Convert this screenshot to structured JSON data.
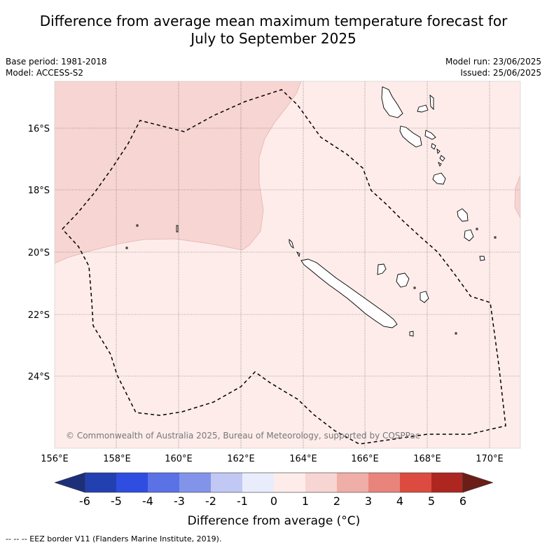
{
  "title_line1": "Difference from average mean maximum temperature forecast for",
  "title_line2": "July to September 2025",
  "base_period": "Base period: 1981-2018",
  "model": "Model: ACCESS-S2",
  "model_run": "Model run: 23/06/2025",
  "issued": "Issued: 25/06/2025",
  "copyright": "© Commonwealth of Australia 2025, Bureau of Meteorology, supported by COSPPac",
  "colorbar_label": "Difference from average (°C)",
  "footer": "--  --  -- EEZ border V11 (Flanders Marine Institute, 2019).",
  "lat_labels": [
    "16°S",
    "18°S",
    "20°S",
    "22°S",
    "24°S"
  ],
  "lon_labels": [
    "156°E",
    "158°E",
    "160°E",
    "162°E",
    "164°E",
    "166°E",
    "168°E",
    "170°E"
  ],
  "colorbar_ticks": [
    "-6",
    "-5",
    "-4",
    "-3",
    "-2",
    "-1",
    "0",
    "1",
    "2",
    "3",
    "4",
    "5",
    "6"
  ],
  "colors": {
    "anomaly_0_1": "#fdecea",
    "anomaly_1_2": "#f7d5d2",
    "scale": [
      "#1e2f7a",
      "#2340b0",
      "#2f4de0",
      "#5a72e6",
      "#8294ea",
      "#c0c8f3",
      "#e9ecfb",
      "#fdecea",
      "#f7d5d2",
      "#f0aea8",
      "#e8847c",
      "#dc4b3f",
      "#ad2620",
      "#6b1e18"
    ]
  }
}
